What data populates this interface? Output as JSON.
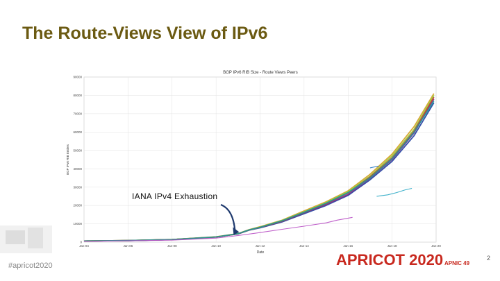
{
  "slide": {
    "title": "The Route-Views View of IPv6",
    "hashtag": "#apricot2020",
    "logo_text": "APRICOT 2020",
    "logo_sub": "APNIC 49",
    "page_number": "2",
    "accent_color": "#6b5a12",
    "logo_color": "#c8281e"
  },
  "annotation": {
    "text": "IANA IPv4 Exhaustion",
    "x": "Feb-11",
    "arrow_color": "#1f3a6e"
  },
  "chart_data": {
    "type": "line",
    "title": "BGP IPv6 RIB Size - Route Views Peers",
    "xlabel": "Date",
    "ylabel": "BGP IPv6 RIB Entries",
    "x_ticks": [
      "Jan-04",
      "Jan-06",
      "Jan-08",
      "Jan-10",
      "Jan-12",
      "Jan-14",
      "Jan-16",
      "Jan-18",
      "Jan-20"
    ],
    "x_range": [
      2004,
      2020
    ],
    "ylim": [
      0,
      90000
    ],
    "y_ticks": [
      0,
      10000,
      20000,
      30000,
      40000,
      50000,
      60000,
      70000,
      80000,
      90000
    ],
    "grid": true,
    "series": [
      {
        "color": "#1f3fa0",
        "points": [
          [
            2004,
            600
          ],
          [
            2006,
            850
          ],
          [
            2008,
            1400
          ],
          [
            2010,
            2800
          ],
          [
            2011,
            4500
          ],
          [
            2011.5,
            6500
          ],
          [
            2012,
            7800
          ],
          [
            2013,
            11000
          ],
          [
            2014,
            15500
          ],
          [
            2015,
            20000
          ],
          [
            2016,
            25500
          ],
          [
            2017,
            34000
          ],
          [
            2018,
            44000
          ],
          [
            2019,
            58000
          ],
          [
            2019.9,
            76000
          ]
        ]
      },
      {
        "color": "#7a2a8c",
        "points": [
          [
            2004,
            600
          ],
          [
            2006,
            850
          ],
          [
            2008,
            1400
          ],
          [
            2010,
            2800
          ],
          [
            2011,
            4500
          ],
          [
            2011.5,
            6600
          ],
          [
            2012,
            8000
          ],
          [
            2013,
            11300
          ],
          [
            2014,
            16000
          ],
          [
            2015,
            20500
          ],
          [
            2016,
            26000
          ],
          [
            2017,
            34800
          ],
          [
            2018,
            45000
          ],
          [
            2019,
            59500
          ],
          [
            2019.9,
            78000
          ]
        ]
      },
      {
        "color": "#d4a020",
        "points": [
          [
            2004,
            650
          ],
          [
            2006,
            900
          ],
          [
            2008,
            1450
          ],
          [
            2010,
            2900
          ],
          [
            2011,
            4700
          ],
          [
            2011.5,
            6800
          ],
          [
            2012,
            8400
          ],
          [
            2013,
            12000
          ],
          [
            2014,
            17000
          ],
          [
            2015,
            22000
          ],
          [
            2016,
            28000
          ],
          [
            2017,
            37000
          ],
          [
            2018,
            48000
          ],
          [
            2019,
            63000
          ],
          [
            2019.9,
            81000
          ]
        ]
      },
      {
        "color": "#8fcf3a",
        "points": [
          [
            2004,
            620
          ],
          [
            2006,
            880
          ],
          [
            2008,
            1420
          ],
          [
            2010,
            2850
          ],
          [
            2011,
            4600
          ],
          [
            2011.5,
            6700
          ],
          [
            2012,
            8200
          ],
          [
            2013,
            11800
          ],
          [
            2014,
            16500
          ],
          [
            2015,
            21500
          ],
          [
            2016,
            27500
          ],
          [
            2017,
            36000
          ],
          [
            2018,
            47000
          ],
          [
            2019,
            61500
          ],
          [
            2019.9,
            80000
          ]
        ]
      },
      {
        "color": "#c0392b",
        "points": [
          [
            2004,
            600
          ],
          [
            2006,
            860
          ],
          [
            2008,
            1400
          ],
          [
            2010,
            2800
          ],
          [
            2011,
            4550
          ],
          [
            2011.5,
            6600
          ],
          [
            2012,
            8000
          ],
          [
            2013,
            11500
          ],
          [
            2014,
            16200
          ],
          [
            2015,
            21000
          ],
          [
            2016,
            26800
          ],
          [
            2017,
            35500
          ],
          [
            2018,
            46000
          ],
          [
            2019,
            60500
          ],
          [
            2019.9,
            79000
          ]
        ]
      },
      {
        "color": "#1f9a9a",
        "points": [
          [
            2004,
            610
          ],
          [
            2006,
            870
          ],
          [
            2008,
            1410
          ],
          [
            2010,
            2820
          ],
          [
            2011,
            4580
          ],
          [
            2011.5,
            6650
          ],
          [
            2012,
            8100
          ],
          [
            2013,
            11600
          ],
          [
            2014,
            16300
          ],
          [
            2015,
            21200
          ],
          [
            2016,
            27000
          ],
          [
            2017,
            35000
          ],
          [
            2018,
            45500
          ],
          [
            2019,
            60000
          ],
          [
            2019.9,
            77000
          ]
        ]
      },
      {
        "color": "#b84fc4",
        "points": [
          [
            2004,
            500
          ],
          [
            2006,
            700
          ],
          [
            2008,
            1100
          ],
          [
            2010,
            2200
          ],
          [
            2011,
            3600
          ],
          [
            2012,
            5200
          ],
          [
            2013,
            7000
          ],
          [
            2014,
            8700
          ],
          [
            2015,
            10500
          ],
          [
            2015.5,
            12000
          ],
          [
            2016.2,
            13500
          ]
        ]
      },
      {
        "color": "#2aa8c4",
        "points": [
          [
            2017.3,
            25000
          ],
          [
            2017.8,
            25800
          ],
          [
            2018.2,
            27000
          ],
          [
            2018.6,
            28500
          ],
          [
            2018.9,
            29300
          ]
        ]
      },
      {
        "color": "#2a7ac4",
        "points": [
          [
            2017,
            40500
          ],
          [
            2017.2,
            41000
          ],
          [
            2017.4,
            41500
          ]
        ]
      }
    ]
  }
}
